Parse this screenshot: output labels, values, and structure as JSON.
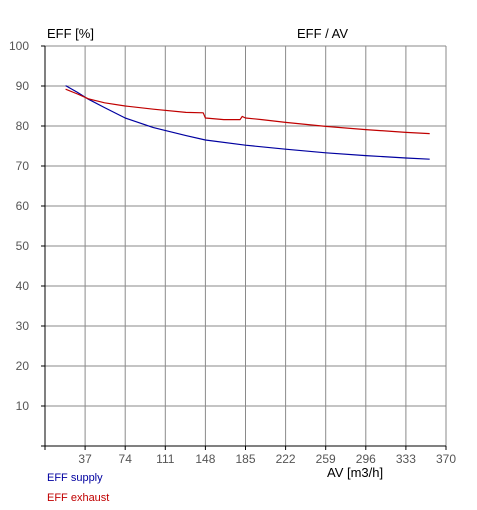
{
  "chart_data": {
    "type": "line",
    "title": "EFF / AV",
    "ylabel": "EFF [%]",
    "xlabel": "AV [m3/h]",
    "xlim": [
      0,
      370
    ],
    "ylim": [
      0,
      100
    ],
    "x_ticks": [
      37,
      74,
      111,
      148,
      185,
      222,
      259,
      296,
      333,
      370
    ],
    "y_ticks": [
      10,
      20,
      30,
      40,
      50,
      60,
      70,
      80,
      90,
      100
    ],
    "grid": true,
    "legend_position": "bottom-left",
    "series": [
      {
        "name": "EFF supply",
        "color": "#0000a0",
        "x": [
          19,
          30,
          40,
          55,
          74,
          100,
          130,
          148,
          185,
          222,
          259,
          296,
          333,
          355
        ],
        "y": [
          90.1,
          88.4,
          86.7,
          84.6,
          82.0,
          79.6,
          77.6,
          76.5,
          75.2,
          74.2,
          73.3,
          72.6,
          72.0,
          71.7
        ]
      },
      {
        "name": "EFF exhaust",
        "color": "#c00000",
        "x": [
          19,
          30,
          40,
          55,
          74,
          100,
          130,
          146,
          148,
          165,
          180,
          182,
          185,
          200,
          222,
          259,
          296,
          333,
          355
        ],
        "y": [
          89.2,
          88.0,
          86.8,
          85.8,
          85.0,
          84.2,
          83.4,
          83.3,
          82.0,
          81.6,
          81.6,
          82.4,
          82.0,
          81.6,
          80.9,
          79.9,
          79.1,
          78.4,
          78.1
        ]
      }
    ]
  }
}
